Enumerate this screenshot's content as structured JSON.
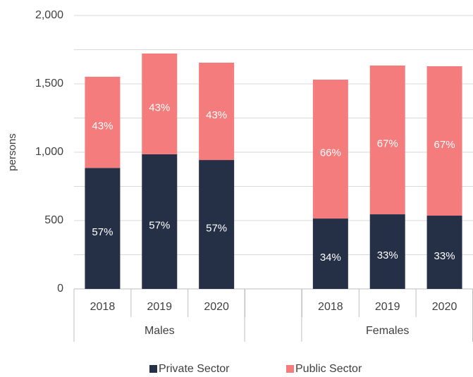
{
  "chart_data": {
    "type": "stacked-bar",
    "y_label": "persons",
    "categories": [
      "2018",
      "2019",
      "2020",
      null,
      "2018",
      "2019",
      "2020"
    ],
    "groups": [
      {
        "name": "Males",
        "count": 3
      },
      {
        "name": null,
        "count": 1
      },
      {
        "name": "Females",
        "count": 3
      }
    ],
    "series": [
      {
        "name": "Private Sector",
        "color": "#253047",
        "values": [
          885,
          985,
          943,
          null,
          515,
          546,
          536
        ],
        "value_labels": [
          "57%",
          "57%",
          "57%",
          null,
          "34%",
          "33%",
          "33%"
        ]
      },
      {
        "name": "Public Sector",
        "color": "#f47c7c",
        "values": [
          667,
          737,
          712,
          null,
          1016,
          1088,
          1093
        ],
        "value_labels": [
          "43%",
          "43%",
          "43%",
          null,
          "66%",
          "67%",
          "67%"
        ]
      }
    ],
    "ylim": [
      0,
      2000
    ],
    "yticks": [
      0,
      500,
      {
        "value": 1000,
        "label": "1,000"
      },
      {
        "value": 1500,
        "label": "1,500"
      },
      {
        "value": 2000,
        "label": "2,000"
      }
    ],
    "minor_yticks": [
      250,
      750,
      1250,
      1750
    ],
    "grid": true,
    "legend": "bottom"
  }
}
